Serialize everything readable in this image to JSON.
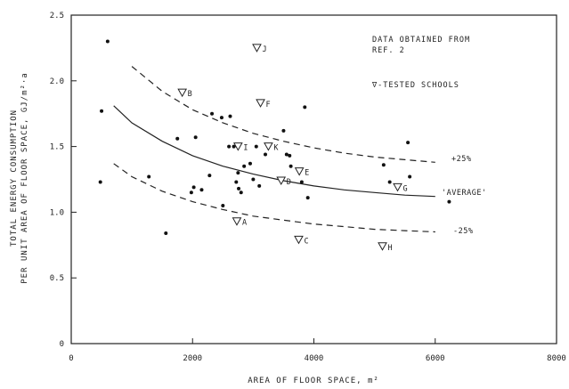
{
  "chart_data": {
    "type": "scatter",
    "ylabel_line1": "TOTAL ENERGY CONSUMPTION",
    "ylabel_line2": "PER UNIT AREA OF FLOOR SPACE, GJ/m²·a",
    "xlabel": "AREA OF FLOOR SPACE, m²",
    "xlim": [
      0,
      8000
    ],
    "ylim": [
      0,
      2.5
    ],
    "x_ticks": [
      0,
      2000,
      4000,
      6000,
      8000
    ],
    "x_tick_labels": [
      "0",
      "2000",
      "4000",
      "6000",
      "8000"
    ],
    "y_ticks": [
      0,
      0.5,
      1.0,
      1.5,
      2.0,
      2.5
    ],
    "y_tick_labels": [
      "0",
      "0.5",
      "1.0",
      "1.5",
      "2.0",
      "2.5"
    ],
    "annotations": {
      "data_line1": "DATA OBTAINED FROM",
      "data_line2": "REF. 2",
      "tested_legend": "∇-TESTED SCHOOLS"
    },
    "curve_labels": {
      "upper": "+25%",
      "average": "'AVERAGE'",
      "lower": "-25%"
    },
    "reference_data_points": {
      "x": [
        600,
        500,
        480,
        1280,
        1560,
        1750,
        2050,
        2320,
        2480,
        2620,
        2020,
        1980,
        2150,
        2280,
        2600,
        2680,
        2720,
        2760,
        2800,
        2750,
        2850,
        2950,
        3000,
        3100,
        3050,
        3200,
        3500,
        3550,
        3600,
        3620,
        3800,
        3850,
        3900,
        5150,
        5250,
        5550,
        5580,
        6230,
        2500
      ],
      "y": [
        2.3,
        1.77,
        1.23,
        1.27,
        0.84,
        1.56,
        1.57,
        1.75,
        1.72,
        1.73,
        1.19,
        1.15,
        1.17,
        1.28,
        1.5,
        1.5,
        1.23,
        1.18,
        1.15,
        1.3,
        1.35,
        1.37,
        1.25,
        1.2,
        1.5,
        1.44,
        1.62,
        1.44,
        1.43,
        1.35,
        1.23,
        1.8,
        1.11,
        1.36,
        1.23,
        1.53,
        1.27,
        1.08,
        1.05
      ]
    },
    "tested_schools": [
      {
        "label": "J",
        "x": 3060,
        "y": 2.25
      },
      {
        "label": "B",
        "x": 1830,
        "y": 1.91
      },
      {
        "label": "F",
        "x": 3120,
        "y": 1.83
      },
      {
        "label": "I",
        "x": 2750,
        "y": 1.5
      },
      {
        "label": "K",
        "x": 3250,
        "y": 1.5
      },
      {
        "label": "E",
        "x": 3760,
        "y": 1.31
      },
      {
        "label": "D",
        "x": 3460,
        "y": 1.24
      },
      {
        "label": "G",
        "x": 5380,
        "y": 1.19
      },
      {
        "label": "A",
        "x": 2730,
        "y": 0.93
      },
      {
        "label": "C",
        "x": 3750,
        "y": 0.79
      },
      {
        "label": "H",
        "x": 5130,
        "y": 0.74
      }
    ],
    "curves": {
      "x": [
        700,
        1000,
        1500,
        2000,
        2500,
        3000,
        3500,
        4000,
        4500,
        5000,
        5500,
        6000
      ],
      "upper": [
        null,
        2.11,
        1.92,
        1.78,
        1.68,
        1.6,
        1.54,
        1.49,
        1.45,
        1.42,
        1.4,
        1.38
      ],
      "average": [
        1.81,
        1.68,
        1.54,
        1.43,
        1.35,
        1.29,
        1.24,
        1.2,
        1.17,
        1.15,
        1.13,
        1.12
      ],
      "lower": [
        1.37,
        1.27,
        1.16,
        1.08,
        1.02,
        0.97,
        0.94,
        0.91,
        0.89,
        0.87,
        0.86,
        0.85
      ]
    }
  }
}
